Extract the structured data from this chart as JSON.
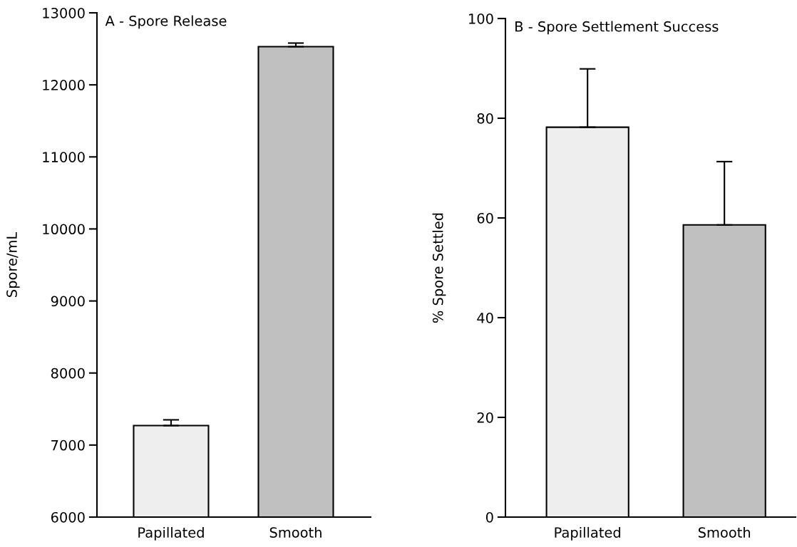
{
  "chart_data": [
    {
      "type": "bar",
      "title": "A - Spore Release",
      "ylabel": "Spore/mL",
      "categories": [
        "Papillated",
        "Smooth"
      ],
      "values": [
        7270,
        12530
      ],
      "errors": [
        [
          7270,
          7350
        ],
        [
          12530,
          12580
        ]
      ],
      "colors": [
        "#eeeeee",
        "#c0c0c0"
      ],
      "ylim": [
        6000,
        13000
      ],
      "yticks": [
        6000,
        7000,
        8000,
        9000,
        10000,
        11000,
        12000,
        13000
      ],
      "grid": false
    },
    {
      "type": "bar",
      "title": "B - Spore Settlement Success",
      "ylabel": "% Spore Settled",
      "categories": [
        "Papillated",
        "Smooth"
      ],
      "values": [
        78.2,
        58.6
      ],
      "errors": [
        [
          78.2,
          89.9
        ],
        [
          58.6,
          71.3
        ]
      ],
      "colors": [
        "#eeeeee",
        "#c0c0c0"
      ],
      "ylim": [
        0,
        100
      ],
      "yticks": [
        0,
        20,
        40,
        60,
        80,
        100
      ],
      "grid": false
    }
  ]
}
